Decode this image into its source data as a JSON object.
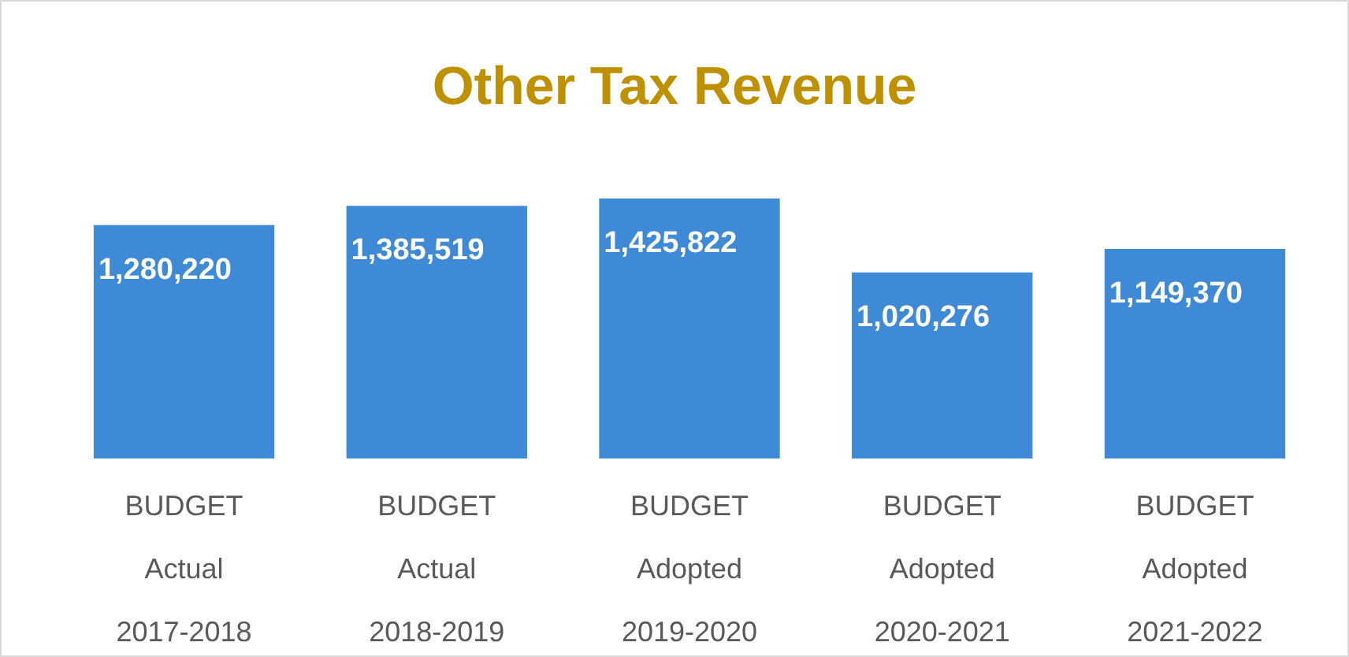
{
  "chart_data": {
    "type": "bar",
    "title": "Other Tax Revenue",
    "categories": [
      "BUDGET\nActual\n2017-2018",
      "BUDGET\nActual\n2018-2019",
      "BUDGET\nAdopted\n2019-2020",
      "BUDGET\nAdopted\n2020-2021",
      "BUDGET\nAdopted\n2021-2022"
    ],
    "values": [
      1280220,
      1385519,
      1425822,
      1020276,
      1149370
    ],
    "value_labels": [
      "1,280,220",
      "1,385,519",
      "1,425,822",
      "1,020,276",
      "1,149,370"
    ],
    "color": "#3f8ad6"
  }
}
